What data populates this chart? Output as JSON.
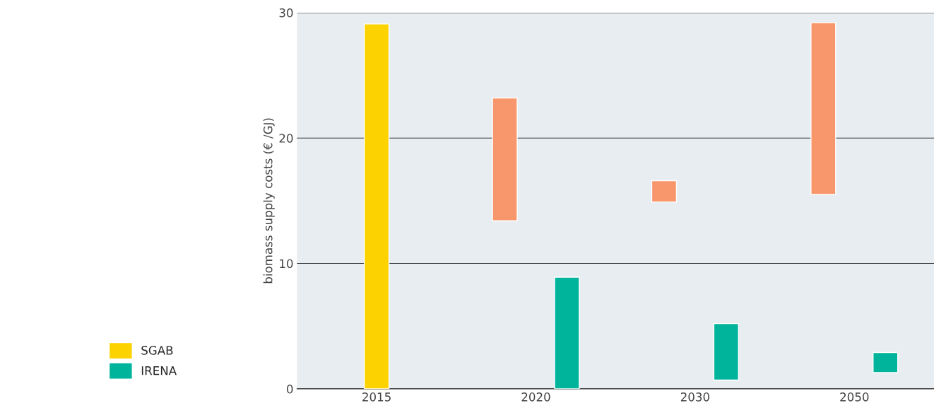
{
  "chart_data": {
    "type": "bar",
    "ylabel": "biomass supply costs (€ /GJ)",
    "categories": [
      "2015",
      "2020",
      "2030",
      "2050"
    ],
    "series": [
      {
        "color": "#f7976b",
        "base": [
          null,
          13.4,
          14.9,
          15.5
        ],
        "values": [
          null,
          9.8,
          1.7,
          13.7
        ]
      },
      {
        "name": "SGAB",
        "color": "#fcd200",
        "base": [
          0,
          null,
          null,
          null
        ],
        "values": [
          29.1,
          null,
          null,
          null
        ]
      },
      {
        "name": "IRENA",
        "color": "#00b49c",
        "base": [
          null,
          0,
          0.7,
          1.3
        ],
        "values": [
          null,
          8.9,
          4.5,
          1.6
        ]
      }
    ],
    "ylim": [
      0,
      30
    ],
    "yticks": [
      0,
      10,
      20,
      30
    ],
    "grid": "y",
    "legend": "bottom left"
  }
}
